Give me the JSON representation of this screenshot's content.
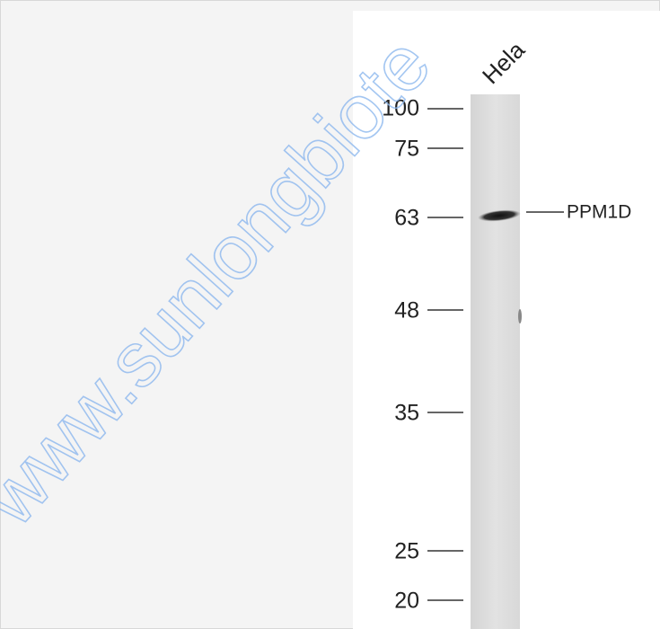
{
  "figure": {
    "lane_label": "Hela",
    "markers": [
      "100",
      "75",
      "63",
      "48",
      "35",
      "25",
      "20"
    ],
    "band_label": "PPM1D",
    "watermark": "www.sunlongbiote"
  }
}
